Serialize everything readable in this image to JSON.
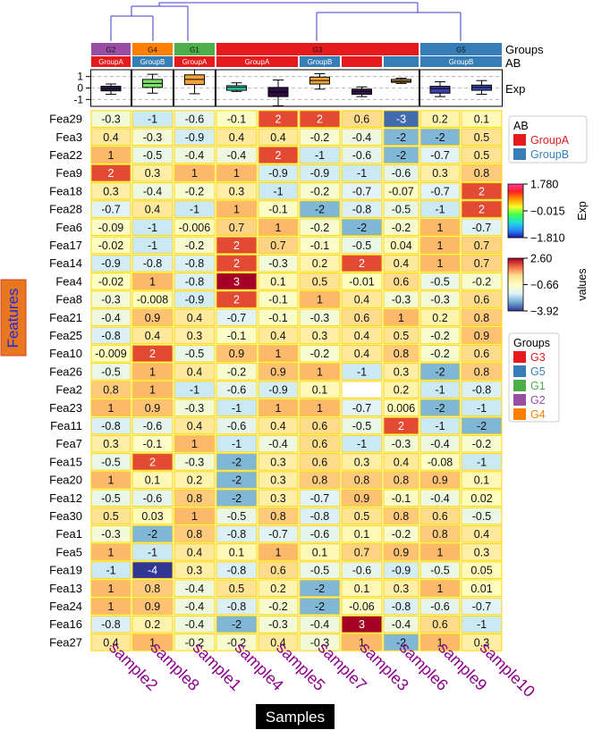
{
  "chart_data": {
    "type": "heatmap",
    "title": "",
    "xlabel": "Samples",
    "ylabel": "Features",
    "columns": [
      "sample2",
      "sample8",
      "sample1",
      "sample4",
      "sample5",
      "sample7",
      "sample3",
      "sample6",
      "sample9",
      "sample10"
    ],
    "rows": [
      "Fea29",
      "Fea3",
      "Fea22",
      "Fea9",
      "Fea18",
      "Fea28",
      "Fea6",
      "Fea17",
      "Fea14",
      "Fea4",
      "Fea8",
      "Fea21",
      "Fea25",
      "Fea10",
      "Fea26",
      "Fea2",
      "Fea23",
      "Fea11",
      "Fea7",
      "Fea15",
      "Fea20",
      "Fea12",
      "Fea30",
      "Fea1",
      "Fea5",
      "Fea19",
      "Fea13",
      "Fea24",
      "Fea16",
      "Fea27"
    ],
    "values": [
      [
        "-0.3",
        "-1",
        "-0.6",
        "-0.1",
        "2",
        "2",
        "0.6",
        "-3",
        "0.2",
        "0.1"
      ],
      [
        "0.4",
        "-0.3",
        "-0.9",
        "0.4",
        "0.4",
        "-0.2",
        "-0.4",
        "-2",
        "-2",
        "0.5"
      ],
      [
        "1",
        "-0.5",
        "-0.4",
        "-0.4",
        "2",
        "-1",
        "-0.6",
        "-2",
        "-0.7",
        "0.5"
      ],
      [
        "2",
        "0.3",
        "1",
        "1",
        "-0.9",
        "-0.9",
        "-1",
        "-0.6",
        "0.3",
        "0.8"
      ],
      [
        "0.3",
        "-0.4",
        "-0.2",
        "0.3",
        "-1",
        "-0.2",
        "-0.7",
        "-0.07",
        "-0.7",
        "2"
      ],
      [
        "-0.7",
        "0.4",
        "-1",
        "1",
        "-0.1",
        "-2",
        "-0.8",
        "-0.5",
        "-1",
        "2"
      ],
      [
        "-0.09",
        "-1",
        "-0.006",
        "0.7",
        "1",
        "-0.2",
        "-2",
        "-0.2",
        "1",
        "-0.7"
      ],
      [
        "-0.02",
        "-1",
        "-0.2",
        "2",
        "0.7",
        "-0.1",
        "-0.5",
        "0.04",
        "1",
        "0.7"
      ],
      [
        "-0.9",
        "-0.8",
        "-0.8",
        "2",
        "-0.3",
        "0.2",
        "2",
        "0.4",
        "1",
        "0.7"
      ],
      [
        "-0.02",
        "1",
        "-0.8",
        "3",
        "0.1",
        "0.5",
        "-0.01",
        "0.6",
        "-0.5",
        "-0.2"
      ],
      [
        "-0.3",
        "-0.008",
        "-0.9",
        "2",
        "-0.1",
        "1",
        "0.4",
        "-0.3",
        "-0.3",
        "0.6"
      ],
      [
        "-0.4",
        "0.9",
        "0.4",
        "-0.7",
        "-0.1",
        "-0.3",
        "0.6",
        "1",
        "0.2",
        "0.8"
      ],
      [
        "-0.8",
        "0.4",
        "0.3",
        "-0.1",
        "0.4",
        "0.3",
        "0.4",
        "0.5",
        "-0.2",
        "0.9"
      ],
      [
        "-0.009",
        "2",
        "-0.5",
        "0.9",
        "1",
        "-0.2",
        "0.4",
        "0.8",
        "-0.2",
        "0.6"
      ],
      [
        "-0.5",
        "1",
        "0.4",
        "-0.2",
        "0.9",
        "1",
        "-1",
        "0.3",
        "-2",
        "0.8"
      ],
      [
        "0.8",
        "1",
        "-1",
        "-0.6",
        "-0.9",
        "0.1",
        "",
        "0.2",
        "-1",
        "-0.8"
      ],
      [
        "1",
        "0.9",
        "-0.3",
        "-1",
        "1",
        "1",
        "-0.7",
        "0.006",
        "-2",
        "-1"
      ],
      [
        "-0.8",
        "-0.6",
        "0.4",
        "-0.6",
        "0.4",
        "0.6",
        "-0.5",
        "2",
        "-1",
        "-2"
      ],
      [
        "0.3",
        "-0.1",
        "1",
        "-1",
        "-0.4",
        "0.6",
        "-1",
        "-0.3",
        "-0.4",
        "-0.2"
      ],
      [
        "-0.5",
        "2",
        "-0.3",
        "-2",
        "0.3",
        "0.6",
        "0.3",
        "0.4",
        "-0.08",
        "-1"
      ],
      [
        "1",
        "0.1",
        "0.2",
        "-2",
        "0.3",
        "0.8",
        "0.8",
        "0.8",
        "0.9",
        "0.1"
      ],
      [
        "-0.5",
        "-0.6",
        "0.8",
        "-2",
        "0.3",
        "-0.7",
        "0.9",
        "-0.1",
        "-0.4",
        "0.02"
      ],
      [
        "0.5",
        "0.03",
        "1",
        "-0.5",
        "0.8",
        "-0.8",
        "0.5",
        "0.8",
        "0.6",
        "-0.5"
      ],
      [
        "-0.3",
        "-2",
        "0.8",
        "-0.8",
        "-0.7",
        "-0.6",
        "0.1",
        "-0.2",
        "0.8",
        "0.4"
      ],
      [
        "1",
        "-1",
        "0.4",
        "0.1",
        "1",
        "0.1",
        "0.7",
        "0.9",
        "1",
        "0.3"
      ],
      [
        "-1",
        "-4",
        "0.3",
        "-0.8",
        "0.6",
        "-0.5",
        "-0.6",
        "-0.9",
        "-0.5",
        "0.05"
      ],
      [
        "1",
        "0.8",
        "-0.4",
        "0.5",
        "0.2",
        "-2",
        "0.1",
        "0.3",
        "1",
        "0.01"
      ],
      [
        "1",
        "0.9",
        "-0.4",
        "-0.8",
        "-0.2",
        "-2",
        "-0.06",
        "-0.8",
        "-0.6",
        "-0.7"
      ],
      [
        "-0.8",
        "0.2",
        "-0.4",
        "-2",
        "-0.3",
        "-0.4",
        "3",
        "-0.4",
        "0.6",
        "-1"
      ],
      [
        "0.4",
        "1",
        "-0.2",
        "-0.2",
        "0.4",
        "-0.3",
        "1",
        "-2",
        "1",
        "0.3"
      ]
    ],
    "groups_annotation": {
      "label": "Groups",
      "blocks": [
        {
          "name": "G2",
          "span": 1
        },
        {
          "name": "G4",
          "span": 1
        },
        {
          "name": "G1",
          "span": 1
        },
        {
          "name": "G3",
          "span": 5
        },
        {
          "name": "G5",
          "span": 2
        }
      ]
    },
    "ab_annotation": {
      "label": "AB",
      "cells": [
        "GroupA",
        "GroupB",
        "GroupA",
        "GroupA",
        "GroupA",
        "GroupB",
        "GroupA",
        "GroupB",
        "GroupB",
        "GroupB"
      ],
      "blocks": [
        {
          "label": "GroupA",
          "span": 1
        },
        {
          "label": "GroupB",
          "span": 1
        },
        {
          "label": "GroupA",
          "span": 1
        },
        {
          "label": "GroupA",
          "span": 2
        },
        {
          "label": "GroupB",
          "span": 1
        },
        {
          "label": "",
          "span": 1
        },
        {
          "label": "",
          "span": 1
        },
        {
          "label": "GroupB",
          "span": 2
        }
      ]
    },
    "exp_annotation": {
      "label": "Exp",
      "yticks": [
        "1",
        "0",
        "-1"
      ],
      "ylim": [
        -1.6,
        1.6
      ],
      "boxes": [
        {
          "median": -0.05,
          "q1": -0.25,
          "q3": 0.15,
          "lo": -0.55,
          "hi": 0.35,
          "color": "#2f1b4f"
        },
        {
          "median": 0.4,
          "q1": 0.05,
          "q3": 0.75,
          "lo": -0.45,
          "hi": 1.2,
          "color": "#7ddf6a"
        },
        {
          "median": 0.75,
          "q1": 0.3,
          "q3": 1.15,
          "lo": -0.5,
          "hi": 1.6,
          "color": "#f5a13a"
        },
        {
          "median": 0.05,
          "q1": -0.2,
          "q3": 0.2,
          "lo": -0.3,
          "hi": 0.45,
          "color": "#36d6b0"
        },
        {
          "median": -0.35,
          "q1": -0.75,
          "q3": 0.05,
          "lo": -1.55,
          "hi": 0.7,
          "color": "#2b0d3f"
        },
        {
          "median": 0.65,
          "q1": 0.35,
          "q3": 0.95,
          "lo": -0.1,
          "hi": 1.25,
          "color": "#f8a53c"
        },
        {
          "median": -0.3,
          "q1": -0.55,
          "q3": -0.1,
          "lo": -0.75,
          "hi": 0.1,
          "color": "#3a1550"
        },
        {
          "median": 0.6,
          "q1": 0.5,
          "q3": 0.75,
          "lo": 0.4,
          "hi": 0.85,
          "color": "#f4a640"
        },
        {
          "median": -0.05,
          "q1": -0.45,
          "q3": 0.15,
          "lo": -0.75,
          "hi": 0.55,
          "color": "#3e3fa8"
        },
        {
          "median": 0.05,
          "q1": -0.2,
          "q3": 0.25,
          "lo": -0.55,
          "hi": 0.65,
          "color": "#3a4bb5"
        }
      ]
    },
    "legends": {
      "ab": {
        "title": "AB",
        "entries": [
          {
            "label": "GroupA",
            "color": "#e41a1c"
          },
          {
            "label": "GroupB",
            "color": "#377eb8"
          }
        ]
      },
      "exp": {
        "title": "Exp",
        "ticks": [
          "1.780",
          "−0.015",
          "−1.810"
        ]
      },
      "values": {
        "title": "values",
        "ticks": [
          "2.60",
          "−0.66",
          "−3.92"
        ]
      },
      "groups": {
        "title": "Groups",
        "entries": [
          {
            "label": "G3",
            "color": "#e41a1c"
          },
          {
            "label": "G5",
            "color": "#377eb8"
          },
          {
            "label": "G1",
            "color": "#4daf4a"
          },
          {
            "label": "G2",
            "color": "#984ea3"
          },
          {
            "label": "G4",
            "color": "#ff7f00"
          }
        ]
      }
    }
  },
  "colors": {
    "heat_low": "#313695",
    "heat_mid": "#ffffbf",
    "heat_high": "#a50026",
    "cell_border": "#ffd700",
    "dendrogram": "#3c3cc8",
    "axis_label": "#8b008b",
    "features_bg": "#e8771f",
    "features_fg": "#1e2be0",
    "samples_bg": "#000000",
    "samples_fg": "#ffffff"
  }
}
